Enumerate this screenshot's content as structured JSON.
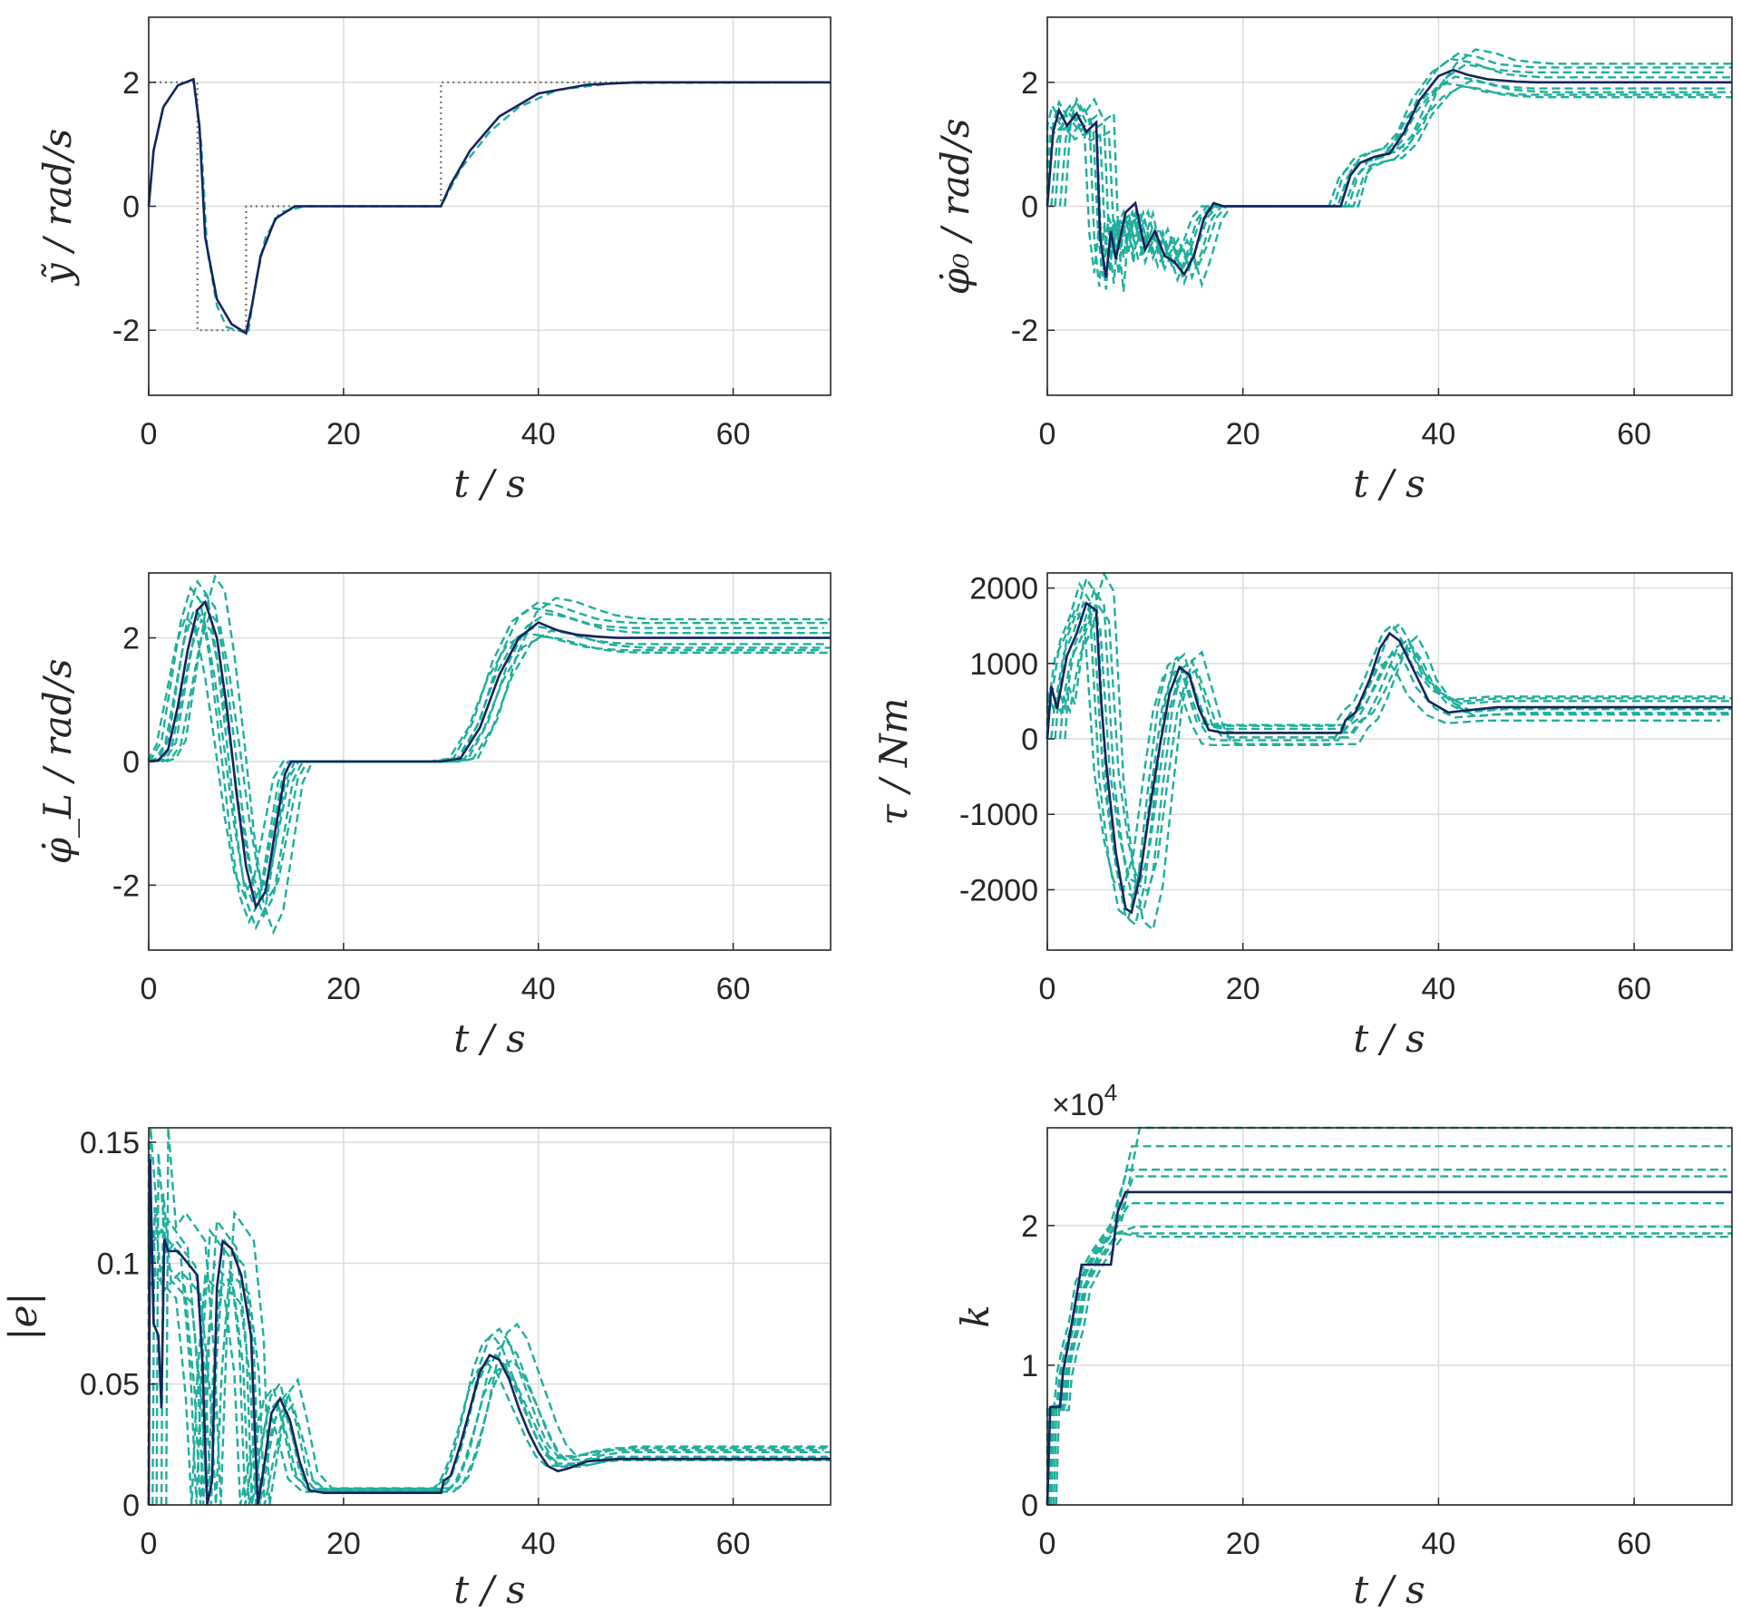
{
  "colors": {
    "main": "#14245c",
    "variant": "#1fae9c",
    "reference": "#707070",
    "axis": "#262626",
    "grid": "#dcdcdc"
  },
  "chart_data": [
    {
      "type": "line",
      "ylabel": "ỹ / rad/s",
      "xlabel": "t / s",
      "xlim": [
        0,
        70
      ],
      "ylim": [
        -3.05,
        3.05
      ],
      "xticks": [
        "0",
        "20",
        "40",
        "60"
      ],
      "xtick_values": [
        0,
        20,
        40,
        60
      ],
      "yticks": [
        "-2",
        "0",
        "2"
      ],
      "ytick_values": [
        -2,
        0,
        2
      ],
      "series": [
        {
          "name": "reference",
          "style": "dotted",
          "x": [
            0,
            5,
            5,
            10,
            10,
            30,
            30,
            70
          ],
          "y": [
            2,
            2,
            -2,
            -2,
            0,
            0,
            2,
            2
          ]
        },
        {
          "name": "variants",
          "style": "dashed",
          "count": 1,
          "x": [
            0,
            0.5,
            1.5,
            3,
            4.6,
            5.4,
            6,
            7,
            8,
            10.2,
            11,
            12,
            13.5,
            16,
            30,
            32,
            35,
            38,
            42,
            48,
            70
          ],
          "y": [
            0,
            0.9,
            1.6,
            1.95,
            2.05,
            1.0,
            -0.7,
            -1.6,
            -1.95,
            -2.05,
            -1.2,
            -0.5,
            -0.1,
            0,
            0,
            0.6,
            1.2,
            1.6,
            1.88,
            1.99,
            2
          ]
        },
        {
          "name": "main",
          "style": "solid",
          "x": [
            0,
            0.5,
            1.5,
            3,
            4.6,
            5.2,
            5.8,
            7,
            8.5,
            10,
            10.6,
            11.5,
            13,
            15,
            30,
            31,
            33,
            36,
            40,
            45,
            50,
            70
          ],
          "y": [
            0,
            0.9,
            1.6,
            1.95,
            2.05,
            1.3,
            -0.5,
            -1.5,
            -1.9,
            -2.05,
            -1.6,
            -0.8,
            -0.2,
            0,
            0,
            0.35,
            0.9,
            1.45,
            1.82,
            1.96,
            2,
            2
          ]
        }
      ]
    },
    {
      "type": "line",
      "ylabel": "φ̇₀ / rad/s",
      "xlabel": "t / s",
      "xlim": [
        0,
        70
      ],
      "ylim": [
        -3.05,
        3.05
      ],
      "xticks": [
        "0",
        "20",
        "40",
        "60"
      ],
      "xtick_values": [
        0,
        20,
        40,
        60
      ],
      "yticks": [
        "-2",
        "0",
        "2"
      ],
      "ytick_values": [
        -2,
        0,
        2
      ],
      "series": [
        {
          "name": "variants",
          "style": "dashed",
          "count": 8,
          "x": [
            0,
            0.6,
            1.2,
            2,
            3,
            4,
            5,
            5.5,
            6,
            6.5,
            7,
            7.5,
            8,
            9,
            10,
            11,
            12,
            13,
            14,
            15,
            16,
            17,
            18,
            30,
            31,
            32,
            33.5,
            35,
            36.5,
            38,
            40,
            42,
            44,
            46,
            48,
            50,
            70
          ],
          "y": [
            0,
            1.2,
            1.5,
            1.3,
            1.5,
            1.2,
            1.3,
            -0.5,
            -1.2,
            -0.3,
            -0.8,
            -0.2,
            -0.5,
            -0.1,
            -0.8,
            -0.4,
            -0.9,
            -0.6,
            -1.1,
            -0.7,
            -0.2,
            0,
            0,
            0,
            0.5,
            0.7,
            0.8,
            0.85,
            1.1,
            1.6,
            2.0,
            2.2,
            2.15,
            2.05,
            2.02,
            2,
            2
          ]
        },
        {
          "name": "main",
          "style": "solid",
          "x": [
            0,
            0.6,
            1.2,
            2,
            3,
            4,
            5,
            5.4,
            6,
            6.5,
            7,
            8,
            9,
            10,
            11,
            12,
            13,
            14,
            15,
            16,
            17,
            18,
            30,
            31,
            32,
            33.5,
            35,
            36.5,
            38,
            40,
            41.5,
            43,
            45,
            48,
            50,
            70
          ],
          "y": [
            0,
            1.2,
            1.55,
            1.3,
            1.5,
            1.2,
            1.35,
            -0.5,
            -1.15,
            -0.4,
            -0.85,
            -0.1,
            0.05,
            -0.7,
            -0.4,
            -0.8,
            -0.9,
            -1.1,
            -0.8,
            -0.2,
            0.05,
            0,
            0,
            0.5,
            0.7,
            0.8,
            0.85,
            1.2,
            1.7,
            2.1,
            2.2,
            2.12,
            2.05,
            2.01,
            2,
            2
          ]
        }
      ]
    },
    {
      "type": "line",
      "ylabel": "φ̇_L / rad/s",
      "xlabel": "t / s",
      "xlim": [
        0,
        70
      ],
      "ylim": [
        -3.05,
        3.05
      ],
      "xticks": [
        "0",
        "20",
        "40",
        "60"
      ],
      "xtick_values": [
        0,
        20,
        40,
        60
      ],
      "yticks": [
        "-2",
        "0",
        "2"
      ],
      "ytick_values": [
        -2,
        0,
        2
      ],
      "series": [
        {
          "name": "variants",
          "style": "dashed",
          "count": 8,
          "x": [
            0,
            1,
            2,
            3,
            4,
            5,
            6,
            7,
            8,
            9,
            10,
            11,
            12,
            13,
            14,
            15,
            16,
            30,
            32,
            34,
            36,
            38,
            40,
            42,
            44,
            46,
            48,
            50,
            70
          ],
          "y": [
            0,
            0.05,
            0.3,
            1.2,
            2.1,
            2.6,
            2.4,
            1.5,
            0.3,
            -1.0,
            -2.0,
            -2.4,
            -2.1,
            -1.2,
            -0.3,
            0,
            0,
            0,
            0.05,
            0.6,
            1.5,
            2.1,
            2.3,
            2.25,
            2.15,
            2.06,
            2.02,
            2,
            2
          ]
        },
        {
          "name": "main",
          "style": "solid",
          "x": [
            0,
            1,
            2,
            3,
            4,
            5,
            5.8,
            7,
            8,
            9,
            10,
            11,
            12,
            13,
            14,
            14.6,
            16,
            30,
            32,
            34,
            36,
            38,
            40,
            42,
            44,
            46,
            48,
            70
          ],
          "y": [
            0,
            0.02,
            0.2,
            0.9,
            1.8,
            2.45,
            2.58,
            2.0,
            0.9,
            -0.5,
            -1.7,
            -2.35,
            -2.1,
            -1.1,
            -0.2,
            0,
            0,
            0,
            0.05,
            0.55,
            1.4,
            2.0,
            2.25,
            2.12,
            2.05,
            2.02,
            2.0,
            2
          ]
        }
      ]
    },
    {
      "type": "line",
      "ylabel": "τ / Nm",
      "xlabel": "t / s",
      "xlim": [
        0,
        70
      ],
      "ylim": [
        -2800,
        2200
      ],
      "xticks": [
        "0",
        "20",
        "40",
        "60"
      ],
      "xtick_values": [
        0,
        20,
        40,
        60
      ],
      "yticks": [
        "-2000",
        "-1000",
        "0",
        "1000",
        "2000"
      ],
      "ytick_values": [
        -2000,
        -1000,
        0,
        1000,
        2000
      ],
      "series": [
        {
          "name": "variants",
          "style": "dashed",
          "count": 8,
          "x": [
            0,
            0.4,
            1,
            2,
            3,
            4,
            5,
            6,
            7,
            8,
            9,
            10,
            11,
            12,
            13,
            14,
            15,
            16,
            17,
            18,
            30,
            31,
            32,
            33,
            34,
            35,
            36,
            37,
            38,
            40,
            42,
            44,
            46,
            70
          ],
          "y": [
            0,
            600,
            400,
            1200,
            1500,
            1900,
            1700,
            -500,
            -1500,
            -2100,
            -2200,
            -1700,
            -600,
            400,
            900,
            1000,
            600,
            200,
            80,
            60,
            60,
            250,
            350,
            600,
            900,
            1200,
            1300,
            1100,
            800,
            500,
            380,
            400,
            420,
            420
          ]
        },
        {
          "name": "main",
          "style": "solid",
          "x": [
            0,
            0.4,
            1,
            2,
            3,
            4,
            5,
            5.5,
            6,
            7,
            8,
            8.6,
            9.5,
            10.5,
            11.5,
            12.5,
            13.5,
            14.5,
            15.5,
            16.5,
            18,
            30,
            30.5,
            31.5,
            33,
            34,
            35,
            36,
            37.5,
            39,
            41,
            43,
            46,
            70
          ],
          "y": [
            0,
            700,
            400,
            1100,
            1400,
            1800,
            1700,
            500,
            -300,
            -1500,
            -2250,
            -2300,
            -1800,
            -900,
            -100,
            600,
            950,
            850,
            400,
            120,
            80,
            80,
            250,
            350,
            800,
            1200,
            1400,
            1300,
            900,
            500,
            350,
            380,
            420,
            420
          ]
        }
      ]
    },
    {
      "type": "line",
      "ylabel": "|e|",
      "xlabel": "t / s",
      "xlim": [
        0,
        70
      ],
      "ylim": [
        0,
        0.156
      ],
      "xticks": [
        "0",
        "20",
        "40",
        "60"
      ],
      "xtick_values": [
        0,
        20,
        40,
        60
      ],
      "yticks": [
        "0",
        "0.05",
        "0.1",
        "0.15"
      ],
      "ytick_values": [
        0,
        0.05,
        0.1,
        0.15
      ],
      "series": [
        {
          "name": "variants",
          "style": "dashed",
          "count": 8,
          "x": [
            0,
            0.2,
            1,
            2,
            3,
            4,
            5,
            5.6,
            6.2,
            7,
            8,
            9,
            10,
            10.6,
            11.5,
            12.5,
            13.5,
            14.5,
            15.5,
            17,
            20,
            30,
            31,
            32,
            33,
            34,
            35,
            36,
            37,
            38,
            39,
            40,
            41,
            42,
            44,
            46,
            48,
            50,
            70
          ],
          "y": [
            0,
            0.14,
            0.1,
            0.105,
            0.1,
            0.095,
            0.05,
            0,
            0.06,
            0.105,
            0.1,
            0.095,
            0.06,
            0,
            0.02,
            0.04,
            0.045,
            0.03,
            0.012,
            0.006,
            0.006,
            0.006,
            0.01,
            0.02,
            0.035,
            0.052,
            0.062,
            0.065,
            0.06,
            0.05,
            0.04,
            0.03,
            0.022,
            0.018,
            0.018,
            0.02,
            0.021,
            0.021,
            0.021
          ]
        },
        {
          "name": "main",
          "style": "solid",
          "x": [
            0,
            0.15,
            0.5,
            1,
            1.3,
            1.6,
            2,
            3,
            4,
            5,
            5.5,
            6,
            6.5,
            7,
            7.6,
            8.5,
            9.5,
            10.5,
            11.2,
            11.8,
            12.6,
            13.5,
            14.5,
            15.5,
            16.5,
            18,
            30,
            30.3,
            31,
            32,
            33,
            34,
            35,
            36,
            37,
            38,
            39,
            40,
            41,
            42,
            43,
            45,
            48,
            70
          ],
          "y": [
            0,
            0.143,
            0.075,
            0.07,
            0.04,
            0.11,
            0.105,
            0.105,
            0.1,
            0.095,
            0.06,
            0,
            0.01,
            0.09,
            0.109,
            0.106,
            0.095,
            0.07,
            0,
            0.015,
            0.038,
            0.044,
            0.035,
            0.018,
            0.006,
            0.005,
            0.005,
            0.01,
            0.012,
            0.025,
            0.04,
            0.055,
            0.062,
            0.06,
            0.052,
            0.04,
            0.03,
            0.022,
            0.016,
            0.014,
            0.015,
            0.018,
            0.019,
            0.019
          ]
        }
      ]
    },
    {
      "type": "line",
      "ylabel": "k",
      "xlabel": "t / s",
      "exponent_label": "×10",
      "exponent_power": "4",
      "xlim": [
        0,
        70
      ],
      "ylim": [
        0,
        2.7
      ],
      "xticks": [
        "0",
        "20",
        "40",
        "60"
      ],
      "xtick_values": [
        0,
        20,
        40,
        60
      ],
      "yticks": [
        "0",
        "1",
        "2"
      ],
      "ytick_values": [
        0,
        1,
        2
      ],
      "series": [
        {
          "name": "variants",
          "style": "dashed",
          "count": 8,
          "x": [
            0,
            0.3,
            1.3,
            1.6,
            2.2,
            2.8,
            3.5,
            5,
            7,
            8.8,
            70
          ],
          "y": [
            0,
            0.7,
            0.7,
            0.95,
            1.15,
            1.3,
            1.6,
            1.8,
            2.0,
            2.4,
            2.4
          ]
        },
        {
          "name": "main",
          "style": "solid",
          "x": [
            0,
            0.3,
            1.3,
            1.6,
            2.0,
            2.5,
            3.0,
            3.5,
            6.5,
            7.2,
            8.0,
            70
          ],
          "y": [
            0,
            0.7,
            0.7,
            0.95,
            1.1,
            1.3,
            1.5,
            1.72,
            1.72,
            2.1,
            2.24,
            2.24
          ]
        }
      ]
    }
  ]
}
